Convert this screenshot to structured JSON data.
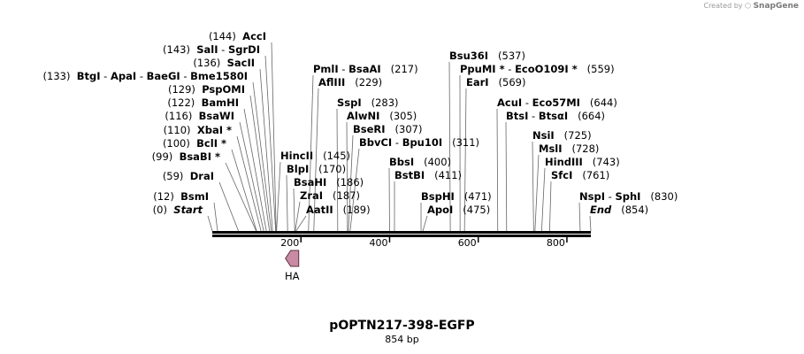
{
  "credit": {
    "prefix": "Created by",
    "brand": "SnapGene"
  },
  "title": "pOPTN217-398-EGFP",
  "length_label": "854 bp",
  "colors": {
    "feature": "#c98ba3",
    "feature_stroke": "#5a3040",
    "backbone": "#000000",
    "lines": "#666666"
  },
  "axis": {
    "max": 854,
    "ticks": [
      200,
      400,
      600,
      800
    ]
  },
  "features": [
    {
      "name": "HA",
      "start": 165,
      "end": 195,
      "direction": "reverse"
    }
  ],
  "sites": [
    {
      "id": "s0",
      "parts": [
        {
          "t": "(0)",
          "k": "pos"
        },
        {
          "t": "Start",
          "k": "it"
        }
      ],
      "pos": 0
    },
    {
      "id": "s1",
      "parts": [
        {
          "t": "(12)",
          "k": "pos"
        },
        {
          "t": "BsmI",
          "k": "enz"
        }
      ],
      "pos": 12
    },
    {
      "id": "s2",
      "parts": [
        {
          "t": "(59)",
          "k": "pos"
        },
        {
          "t": "DraI",
          "k": "enz"
        }
      ],
      "pos": 59
    },
    {
      "id": "s3",
      "parts": [
        {
          "t": "(99)",
          "k": "pos"
        },
        {
          "t": "BsaBI *",
          "k": "enz"
        }
      ],
      "pos": 99
    },
    {
      "id": "s4",
      "parts": [
        {
          "t": "(100)",
          "k": "pos"
        },
        {
          "t": "BclI *",
          "k": "enz"
        }
      ],
      "pos": 100
    },
    {
      "id": "s5",
      "parts": [
        {
          "t": "(110)",
          "k": "pos"
        },
        {
          "t": "XbaI *",
          "k": "enz"
        }
      ],
      "pos": 110
    },
    {
      "id": "s6",
      "parts": [
        {
          "t": "(116)",
          "k": "pos"
        },
        {
          "t": "BsaWI",
          "k": "enz"
        }
      ],
      "pos": 116
    },
    {
      "id": "s7",
      "parts": [
        {
          "t": "(122)",
          "k": "pos"
        },
        {
          "t": "BamHI",
          "k": "enz"
        }
      ],
      "pos": 122
    },
    {
      "id": "s8",
      "parts": [
        {
          "t": "(129)",
          "k": "pos"
        },
        {
          "t": "PspOMI",
          "k": "enz"
        }
      ],
      "pos": 129
    },
    {
      "id": "s9",
      "parts": [
        {
          "t": "(133)",
          "k": "pos"
        },
        {
          "t": "BtgI",
          "k": "enz"
        },
        {
          "t": " - ",
          "k": "pos"
        },
        {
          "t": "ApaI",
          "k": "enz"
        },
        {
          "t": " - ",
          "k": "pos"
        },
        {
          "t": "BaeGI",
          "k": "enz"
        },
        {
          "t": " - ",
          "k": "pos"
        },
        {
          "t": "Bme1580I",
          "k": "enz"
        }
      ],
      "pos": 133
    },
    {
      "id": "s10",
      "parts": [
        {
          "t": "(136)",
          "k": "pos"
        },
        {
          "t": "SacII",
          "k": "enz"
        }
      ],
      "pos": 136
    },
    {
      "id": "s11",
      "parts": [
        {
          "t": "(143)",
          "k": "pos"
        },
        {
          "t": "SalI",
          "k": "enz"
        },
        {
          "t": " - ",
          "k": "pos"
        },
        {
          "t": "SgrDI",
          "k": "enz"
        }
      ],
      "pos": 143
    },
    {
      "id": "s12",
      "parts": [
        {
          "t": "(144)",
          "k": "pos"
        },
        {
          "t": "AccI",
          "k": "enz"
        }
      ],
      "pos": 144
    },
    {
      "id": "s13",
      "parts": [
        {
          "t": "HincII",
          "k": "enz"
        },
        {
          "t": "(145)",
          "k": "pos"
        }
      ],
      "pos": 145
    },
    {
      "id": "s14",
      "parts": [
        {
          "t": "BlpI",
          "k": "enz"
        },
        {
          "t": "(170)",
          "k": "pos"
        }
      ],
      "pos": 170
    },
    {
      "id": "s15",
      "parts": [
        {
          "t": "BsaHI",
          "k": "enz"
        },
        {
          "t": "(186)",
          "k": "pos"
        }
      ],
      "pos": 186
    },
    {
      "id": "s16",
      "parts": [
        {
          "t": "ZraI",
          "k": "enz"
        },
        {
          "t": "(187)",
          "k": "pos"
        }
      ],
      "pos": 187
    },
    {
      "id": "s17",
      "parts": [
        {
          "t": "AatII",
          "k": "enz"
        },
        {
          "t": "(189)",
          "k": "pos"
        }
      ],
      "pos": 189
    },
    {
      "id": "s18",
      "parts": [
        {
          "t": "PmlI",
          "k": "enz"
        },
        {
          "t": " - ",
          "k": "pos"
        },
        {
          "t": "BsaAI",
          "k": "enz"
        },
        {
          "t": "(217)",
          "k": "pos"
        }
      ],
      "pos": 217
    },
    {
      "id": "s19",
      "parts": [
        {
          "t": "AflIII",
          "k": "enz"
        },
        {
          "t": "(229)",
          "k": "pos"
        }
      ],
      "pos": 229
    },
    {
      "id": "s20",
      "parts": [
        {
          "t": "SspI",
          "k": "enz"
        },
        {
          "t": "(283)",
          "k": "pos"
        }
      ],
      "pos": 283
    },
    {
      "id": "s21",
      "parts": [
        {
          "t": "AlwNI",
          "k": "enz"
        },
        {
          "t": "(305)",
          "k": "pos"
        }
      ],
      "pos": 305
    },
    {
      "id": "s22",
      "parts": [
        {
          "t": "BseRI",
          "k": "enz"
        },
        {
          "t": "(307)",
          "k": "pos"
        }
      ],
      "pos": 307
    },
    {
      "id": "s23",
      "parts": [
        {
          "t": "BbvCI",
          "k": "enz"
        },
        {
          "t": " - ",
          "k": "pos"
        },
        {
          "t": "Bpu10I",
          "k": "enz"
        },
        {
          "t": "(311)",
          "k": "pos"
        }
      ],
      "pos": 311
    },
    {
      "id": "s24",
      "parts": [
        {
          "t": "BbsI",
          "k": "enz"
        },
        {
          "t": "(400)",
          "k": "pos"
        }
      ],
      "pos": 400
    },
    {
      "id": "s25",
      "parts": [
        {
          "t": "BstBI",
          "k": "enz"
        },
        {
          "t": "(411)",
          "k": "pos"
        }
      ],
      "pos": 411
    },
    {
      "id": "s26",
      "parts": [
        {
          "t": "BspHI",
          "k": "enz"
        },
        {
          "t": "(471)",
          "k": "pos"
        }
      ],
      "pos": 471
    },
    {
      "id": "s27",
      "parts": [
        {
          "t": "ApoI",
          "k": "enz"
        },
        {
          "t": "(475)",
          "k": "pos"
        }
      ],
      "pos": 475
    },
    {
      "id": "s28",
      "parts": [
        {
          "t": "Bsu36I",
          "k": "enz"
        },
        {
          "t": "(537)",
          "k": "pos"
        }
      ],
      "pos": 537
    },
    {
      "id": "s29",
      "parts": [
        {
          "t": "PpuMI *",
          "k": "enz"
        },
        {
          "t": " - ",
          "k": "pos"
        },
        {
          "t": "EcoO109I *",
          "k": "enz"
        },
        {
          "t": "(559)",
          "k": "pos"
        }
      ],
      "pos": 559
    },
    {
      "id": "s30",
      "parts": [
        {
          "t": "EarI",
          "k": "enz"
        },
        {
          "t": "(569)",
          "k": "pos"
        }
      ],
      "pos": 569
    },
    {
      "id": "s31",
      "parts": [
        {
          "t": "AcuI",
          "k": "enz"
        },
        {
          "t": " - ",
          "k": "pos"
        },
        {
          "t": "Eco57MI",
          "k": "enz"
        },
        {
          "t": "(644)",
          "k": "pos"
        }
      ],
      "pos": 644
    },
    {
      "id": "s32",
      "parts": [
        {
          "t": "BtsI",
          "k": "enz"
        },
        {
          "t": " - ",
          "k": "pos"
        },
        {
          "t": "BtsαI",
          "k": "enz"
        },
        {
          "t": "(664)",
          "k": "pos"
        }
      ],
      "pos": 664
    },
    {
      "id": "s33",
      "parts": [
        {
          "t": "NsiI",
          "k": "enz"
        },
        {
          "t": "(725)",
          "k": "pos"
        }
      ],
      "pos": 725
    },
    {
      "id": "s34",
      "parts": [
        {
          "t": "MslI",
          "k": "enz"
        },
        {
          "t": "(728)",
          "k": "pos"
        }
      ],
      "pos": 728
    },
    {
      "id": "s35",
      "parts": [
        {
          "t": "HindIII",
          "k": "enz"
        },
        {
          "t": "(743)",
          "k": "pos"
        }
      ],
      "pos": 743
    },
    {
      "id": "s36",
      "parts": [
        {
          "t": "SfcI",
          "k": "enz"
        },
        {
          "t": "(761)",
          "k": "pos"
        }
      ],
      "pos": 761
    },
    {
      "id": "s37",
      "parts": [
        {
          "t": "NspI",
          "k": "enz"
        },
        {
          "t": " - ",
          "k": "pos"
        },
        {
          "t": "SphI",
          "k": "enz"
        },
        {
          "t": "(830)",
          "k": "pos"
        }
      ],
      "pos": 830
    },
    {
      "id": "s38",
      "parts": [
        {
          "t": "End",
          "k": "it"
        },
        {
          "t": "(854)",
          "k": "pos"
        }
      ],
      "pos": 854
    }
  ]
}
